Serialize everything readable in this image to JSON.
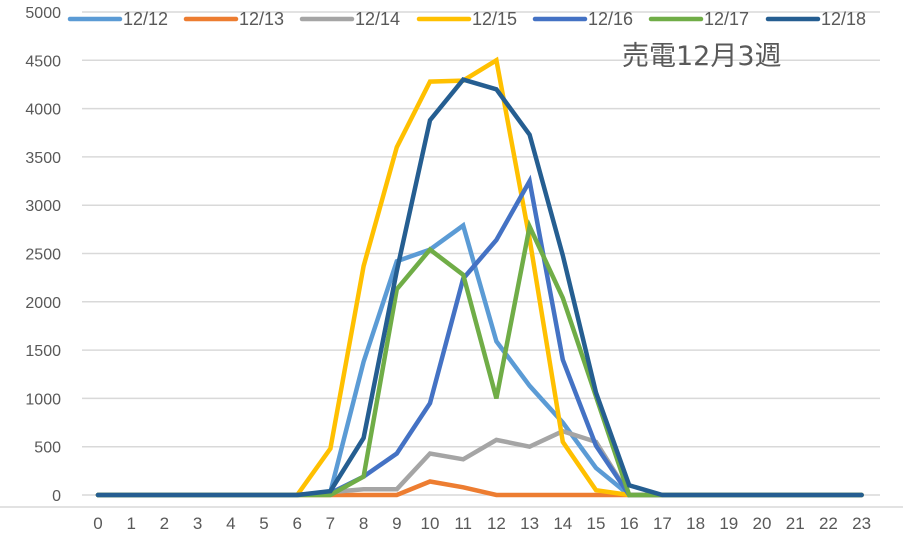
{
  "chart_data": {
    "type": "line",
    "title": "売電12月3週",
    "xlabel": "",
    "ylabel": "",
    "ylim": [
      0,
      5000
    ],
    "yticks": [
      0,
      500,
      1000,
      1500,
      2000,
      2500,
      3000,
      3500,
      4000,
      4500,
      5000
    ],
    "grid": true,
    "legend_position": "top",
    "x": [
      0,
      1,
      2,
      3,
      4,
      5,
      6,
      7,
      8,
      9,
      10,
      11,
      12,
      13,
      14,
      15,
      16,
      17,
      18,
      19,
      20,
      21,
      22,
      23
    ],
    "series": [
      {
        "name": "12/12",
        "color": "#5B9BD5",
        "values": [
          0,
          0,
          0,
          0,
          0,
          0,
          0,
          30,
          1380,
          2420,
          2540,
          2790,
          1590,
          1130,
          750,
          280,
          0,
          0,
          0,
          0,
          0,
          0,
          0,
          0
        ]
      },
      {
        "name": "12/13",
        "color": "#ED7D31",
        "values": [
          0,
          0,
          0,
          0,
          0,
          0,
          0,
          0,
          0,
          0,
          140,
          80,
          0,
          0,
          0,
          0,
          0,
          0,
          0,
          0,
          0,
          0,
          0,
          0
        ]
      },
      {
        "name": "12/14",
        "color": "#A5A5A5",
        "values": [
          0,
          0,
          0,
          0,
          0,
          0,
          0,
          30,
          60,
          60,
          430,
          370,
          570,
          500,
          660,
          550,
          0,
          0,
          0,
          0,
          0,
          0,
          0,
          0
        ]
      },
      {
        "name": "12/15",
        "color": "#FFC000",
        "values": [
          0,
          0,
          0,
          0,
          0,
          0,
          0,
          480,
          2370,
          3600,
          4280,
          4290,
          4500,
          2650,
          550,
          50,
          0,
          0,
          0,
          0,
          0,
          0,
          0,
          0
        ]
      },
      {
        "name": "12/16",
        "color": "#4472C4",
        "values": [
          0,
          0,
          0,
          0,
          0,
          0,
          0,
          20,
          190,
          430,
          950,
          2240,
          2640,
          3250,
          1400,
          510,
          0,
          0,
          0,
          0,
          0,
          0,
          0,
          0
        ]
      },
      {
        "name": "12/17",
        "color": "#70AD47",
        "values": [
          0,
          0,
          0,
          0,
          0,
          0,
          0,
          0,
          190,
          2130,
          2540,
          2280,
          1000,
          2780,
          2040,
          1020,
          0,
          0,
          0,
          0,
          0,
          0,
          0,
          0
        ]
      },
      {
        "name": "12/18",
        "color": "#255E91",
        "values": [
          0,
          0,
          0,
          0,
          0,
          0,
          0,
          40,
          590,
          2320,
          3880,
          4300,
          4200,
          3730,
          2480,
          1060,
          100,
          0,
          0,
          0,
          0,
          0,
          0,
          0
        ]
      }
    ]
  }
}
